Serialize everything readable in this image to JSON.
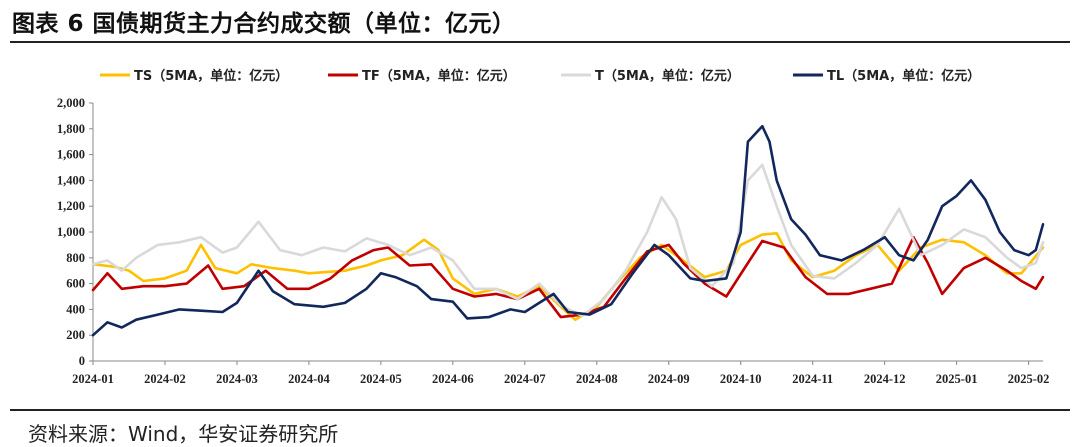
{
  "title": "图表 6  国债期货主力合约成交额（单位：亿元）",
  "source": "资料来源：Wind，华安证券研究所",
  "chart_data": {
    "type": "line",
    "ylim": [
      0,
      2000
    ],
    "yticks": [
      "0",
      "200",
      "400",
      "600",
      "800",
      "1,000",
      "1,200",
      "1,400",
      "1,600",
      "1,800",
      "2,000"
    ],
    "xticks": [
      "2024-01",
      "2024-02",
      "2024-03",
      "2024-04",
      "2024-05",
      "2024-06",
      "2024-07",
      "2024-08",
      "2024-09",
      "2024-10",
      "2024-11",
      "2024-12",
      "2025-01",
      "2025-02"
    ],
    "x_span": [
      0,
      13.2
    ],
    "legend_position": "top",
    "grid": false,
    "series": [
      {
        "name": "TS（5MA，单位：亿元）",
        "color": "#FFC000",
        "width": 2.6,
        "points": [
          [
            0,
            750
          ],
          [
            0.15,
            740
          ],
          [
            0.3,
            730
          ],
          [
            0.5,
            700
          ],
          [
            0.7,
            620
          ],
          [
            1,
            640
          ],
          [
            1.3,
            700
          ],
          [
            1.5,
            900
          ],
          [
            1.7,
            720
          ],
          [
            2,
            680
          ],
          [
            2.2,
            750
          ],
          [
            2.5,
            720
          ],
          [
            2.8,
            700
          ],
          [
            3,
            680
          ],
          [
            3.5,
            700
          ],
          [
            3.8,
            740
          ],
          [
            4,
            780
          ],
          [
            4.3,
            820
          ],
          [
            4.6,
            940
          ],
          [
            4.8,
            860
          ],
          [
            5,
            640
          ],
          [
            5.3,
            520
          ],
          [
            5.6,
            560
          ],
          [
            5.9,
            500
          ],
          [
            6.2,
            580
          ],
          [
            6.5,
            420
          ],
          [
            6.7,
            320
          ],
          [
            7,
            420
          ],
          [
            7.3,
            620
          ],
          [
            7.6,
            800
          ],
          [
            7.9,
            900
          ],
          [
            8.2,
            780
          ],
          [
            8.5,
            650
          ],
          [
            8.8,
            700
          ],
          [
            9,
            900
          ],
          [
            9.3,
            980
          ],
          [
            9.5,
            990
          ],
          [
            9.7,
            780
          ],
          [
            10,
            650
          ],
          [
            10.3,
            700
          ],
          [
            10.6,
            820
          ],
          [
            10.9,
            900
          ],
          [
            11.2,
            700
          ],
          [
            11.5,
            880
          ],
          [
            11.8,
            940
          ],
          [
            12.1,
            920
          ],
          [
            12.4,
            820
          ],
          [
            12.7,
            680
          ],
          [
            12.9,
            680
          ],
          [
            13.2,
            880
          ]
        ]
      },
      {
        "name": "TF（5MA，单位：亿元）",
        "color": "#C00000",
        "width": 2.6,
        "points": [
          [
            0,
            550
          ],
          [
            0.2,
            680
          ],
          [
            0.4,
            560
          ],
          [
            0.7,
            580
          ],
          [
            1,
            580
          ],
          [
            1.3,
            600
          ],
          [
            1.6,
            740
          ],
          [
            1.8,
            560
          ],
          [
            2.1,
            580
          ],
          [
            2.4,
            700
          ],
          [
            2.7,
            560
          ],
          [
            3,
            560
          ],
          [
            3.3,
            640
          ],
          [
            3.6,
            780
          ],
          [
            3.9,
            860
          ],
          [
            4.1,
            880
          ],
          [
            4.4,
            740
          ],
          [
            4.7,
            750
          ],
          [
            5,
            560
          ],
          [
            5.3,
            500
          ],
          [
            5.6,
            520
          ],
          [
            5.9,
            480
          ],
          [
            6.2,
            560
          ],
          [
            6.5,
            340
          ],
          [
            6.8,
            360
          ],
          [
            7.1,
            420
          ],
          [
            7.4,
            640
          ],
          [
            7.7,
            850
          ],
          [
            8,
            900
          ],
          [
            8.2,
            760
          ],
          [
            8.5,
            600
          ],
          [
            8.8,
            500
          ],
          [
            9.1,
            760
          ],
          [
            9.3,
            930
          ],
          [
            9.6,
            880
          ],
          [
            9.9,
            650
          ],
          [
            10.2,
            520
          ],
          [
            10.5,
            520
          ],
          [
            10.8,
            560
          ],
          [
            11.1,
            600
          ],
          [
            11.4,
            960
          ],
          [
            11.6,
            760
          ],
          [
            11.8,
            520
          ],
          [
            12.1,
            720
          ],
          [
            12.4,
            800
          ],
          [
            12.7,
            700
          ],
          [
            12.9,
            620
          ],
          [
            13.1,
            560
          ],
          [
            13.2,
            650
          ]
        ]
      },
      {
        "name": "T（5MA，单位：亿元）",
        "color": "#D9D9D9",
        "width": 2.6,
        "points": [
          [
            0,
            750
          ],
          [
            0.2,
            780
          ],
          [
            0.4,
            700
          ],
          [
            0.6,
            800
          ],
          [
            0.9,
            900
          ],
          [
            1.2,
            920
          ],
          [
            1.5,
            960
          ],
          [
            1.8,
            840
          ],
          [
            2,
            880
          ],
          [
            2.3,
            1080
          ],
          [
            2.6,
            860
          ],
          [
            2.9,
            820
          ],
          [
            3.2,
            880
          ],
          [
            3.5,
            850
          ],
          [
            3.8,
            950
          ],
          [
            4.1,
            900
          ],
          [
            4.4,
            820
          ],
          [
            4.7,
            880
          ],
          [
            5,
            780
          ],
          [
            5.3,
            560
          ],
          [
            5.6,
            560
          ],
          [
            5.9,
            480
          ],
          [
            6.2,
            600
          ],
          [
            6.5,
            430
          ],
          [
            6.8,
            350
          ],
          [
            7.1,
            480
          ],
          [
            7.4,
            700
          ],
          [
            7.7,
            1000
          ],
          [
            7.9,
            1270
          ],
          [
            8.1,
            1100
          ],
          [
            8.3,
            720
          ],
          [
            8.6,
            580
          ],
          [
            8.9,
            760
          ],
          [
            9.1,
            1400
          ],
          [
            9.3,
            1520
          ],
          [
            9.5,
            1200
          ],
          [
            9.7,
            900
          ],
          [
            10,
            660
          ],
          [
            10.3,
            640
          ],
          [
            10.6,
            760
          ],
          [
            10.9,
            900
          ],
          [
            11.2,
            1180
          ],
          [
            11.5,
            820
          ],
          [
            11.8,
            900
          ],
          [
            12.1,
            1020
          ],
          [
            12.4,
            960
          ],
          [
            12.7,
            800
          ],
          [
            12.9,
            720
          ],
          [
            13.1,
            760
          ],
          [
            13.2,
            920
          ]
        ]
      },
      {
        "name": "TL（5MA，单位：亿元）",
        "color": "#12275C",
        "width": 2.6,
        "points": [
          [
            0,
            200
          ],
          [
            0.2,
            300
          ],
          [
            0.4,
            260
          ],
          [
            0.6,
            320
          ],
          [
            0.9,
            360
          ],
          [
            1.2,
            400
          ],
          [
            1.5,
            390
          ],
          [
            1.8,
            380
          ],
          [
            2,
            450
          ],
          [
            2.3,
            700
          ],
          [
            2.5,
            540
          ],
          [
            2.8,
            440
          ],
          [
            3.2,
            420
          ],
          [
            3.5,
            450
          ],
          [
            3.8,
            560
          ],
          [
            4,
            680
          ],
          [
            4.2,
            650
          ],
          [
            4.5,
            580
          ],
          [
            4.7,
            480
          ],
          [
            5,
            460
          ],
          [
            5.2,
            330
          ],
          [
            5.5,
            340
          ],
          [
            5.8,
            400
          ],
          [
            6,
            380
          ],
          [
            6.2,
            450
          ],
          [
            6.4,
            520
          ],
          [
            6.6,
            380
          ],
          [
            6.9,
            360
          ],
          [
            7.2,
            440
          ],
          [
            7.5,
            680
          ],
          [
            7.8,
            900
          ],
          [
            8,
            820
          ],
          [
            8.3,
            640
          ],
          [
            8.5,
            620
          ],
          [
            8.8,
            640
          ],
          [
            9,
            1000
          ],
          [
            9.1,
            1700
          ],
          [
            9.3,
            1820
          ],
          [
            9.4,
            1700
          ],
          [
            9.5,
            1400
          ],
          [
            9.7,
            1100
          ],
          [
            9.9,
            980
          ],
          [
            10.1,
            820
          ],
          [
            10.4,
            780
          ],
          [
            10.7,
            860
          ],
          [
            11,
            960
          ],
          [
            11.2,
            820
          ],
          [
            11.4,
            780
          ],
          [
            11.6,
            940
          ],
          [
            11.8,
            1200
          ],
          [
            12,
            1280
          ],
          [
            12.2,
            1400
          ],
          [
            12.4,
            1250
          ],
          [
            12.6,
            1000
          ],
          [
            12.8,
            860
          ],
          [
            13,
            820
          ],
          [
            13.1,
            860
          ],
          [
            13.2,
            1060
          ]
        ]
      }
    ]
  }
}
